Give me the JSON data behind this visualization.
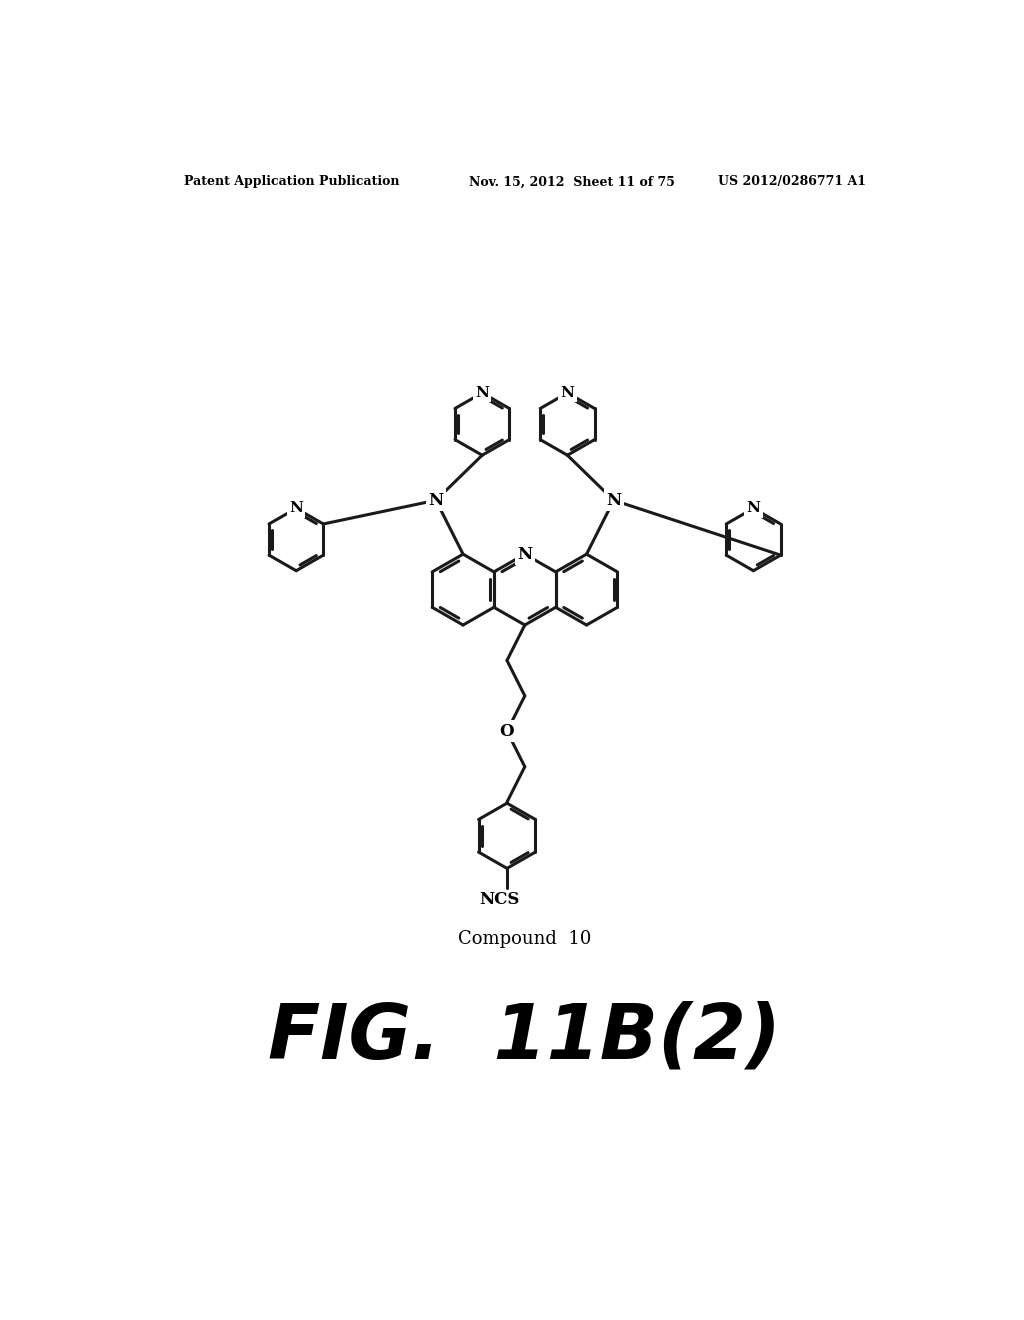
{
  "header_left": "Patent Application Publication",
  "header_mid": "Nov. 15, 2012  Sheet 11 of 75",
  "header_right": "US 2012/0286771 A1",
  "compound_label": "Compound  10",
  "fig_label": "FIG.  11B(2)",
  "background_color": "#ffffff",
  "header_fontsize": 9,
  "compound_fontsize": 13,
  "fig_fontsize": 55,
  "lw": 2.2,
  "bond_color": "#1a1a1a"
}
